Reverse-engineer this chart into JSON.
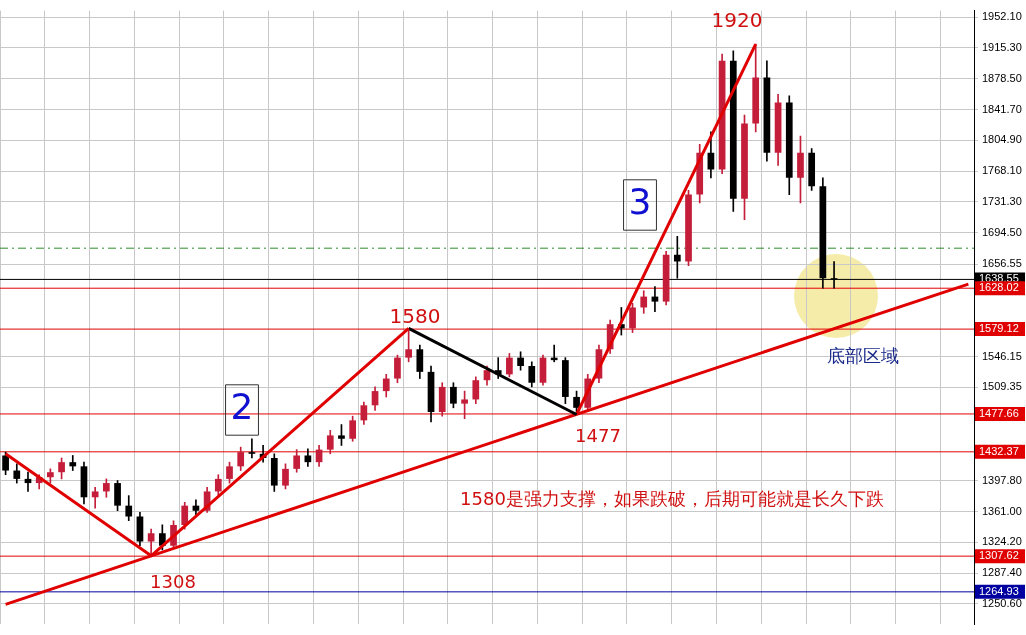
{
  "chart_data": {
    "type": "candlestick",
    "categories": [
      null,
      null,
      null,
      null,
      null,
      null,
      null,
      null,
      null,
      null,
      null,
      null,
      null,
      null,
      null,
      null,
      null,
      null,
      null,
      null,
      null,
      null,
      null,
      null,
      null,
      null,
      null,
      null,
      null,
      null,
      null,
      null,
      null,
      null,
      null,
      null,
      null,
      null,
      null,
      null,
      null,
      null,
      null,
      null,
      null,
      null,
      null,
      null,
      null,
      null,
      null,
      null,
      null,
      null,
      null,
      null,
      null,
      null,
      null,
      null,
      null,
      null,
      null,
      null,
      null,
      null,
      null,
      null,
      null,
      null,
      null,
      null,
      null,
      null,
      null,
      null,
      null,
      null,
      null,
      null,
      null,
      null,
      null,
      null,
      null,
      null,
      null
    ],
    "ohlc": [
      [
        1428,
        1432,
        1405,
        1410
      ],
      [
        1410,
        1418,
        1395,
        1400
      ],
      [
        1400,
        1408,
        1385,
        1395
      ],
      [
        1395,
        1405,
        1388,
        1402
      ],
      [
        1402,
        1412,
        1395,
        1408
      ],
      [
        1408,
        1425,
        1400,
        1420
      ],
      [
        1420,
        1428,
        1410,
        1415
      ],
      [
        1415,
        1420,
        1370,
        1378
      ],
      [
        1378,
        1390,
        1365,
        1385
      ],
      [
        1385,
        1400,
        1378,
        1395
      ],
      [
        1395,
        1398,
        1362,
        1368
      ],
      [
        1368,
        1380,
        1350,
        1355
      ],
      [
        1355,
        1360,
        1320,
        1325
      ],
      [
        1325,
        1340,
        1308,
        1335
      ],
      [
        1335,
        1345,
        1315,
        1320
      ],
      [
        1320,
        1350,
        1318,
        1345
      ],
      [
        1345,
        1372,
        1340,
        1368
      ],
      [
        1368,
        1375,
        1355,
        1362
      ],
      [
        1362,
        1390,
        1360,
        1385
      ],
      [
        1385,
        1405,
        1380,
        1400
      ],
      [
        1400,
        1420,
        1395,
        1415
      ],
      [
        1415,
        1438,
        1410,
        1432
      ],
      [
        1432,
        1448,
        1425,
        1430
      ],
      [
        1430,
        1440,
        1420,
        1425
      ],
      [
        1425,
        1430,
        1385,
        1392
      ],
      [
        1392,
        1418,
        1388,
        1412
      ],
      [
        1412,
        1435,
        1408,
        1428
      ],
      [
        1428,
        1436,
        1415,
        1420
      ],
      [
        1420,
        1440,
        1415,
        1435
      ],
      [
        1435,
        1458,
        1430,
        1452
      ],
      [
        1452,
        1465,
        1440,
        1448
      ],
      [
        1448,
        1475,
        1445,
        1470
      ],
      [
        1470,
        1492,
        1465,
        1488
      ],
      [
        1488,
        1510,
        1482,
        1505
      ],
      [
        1505,
        1525,
        1498,
        1520
      ],
      [
        1520,
        1548,
        1515,
        1545
      ],
      [
        1545,
        1580,
        1540,
        1555
      ],
      [
        1555,
        1560,
        1520,
        1528
      ],
      [
        1528,
        1535,
        1468,
        1480
      ],
      [
        1480,
        1515,
        1475,
        1510
      ],
      [
        1510,
        1515,
        1485,
        1490
      ],
      [
        1490,
        1505,
        1472,
        1495
      ],
      [
        1495,
        1522,
        1490,
        1518
      ],
      [
        1518,
        1535,
        1512,
        1530
      ],
      [
        1530,
        1545,
        1520,
        1525
      ],
      [
        1525,
        1550,
        1522,
        1545
      ],
      [
        1545,
        1552,
        1530,
        1535
      ],
      [
        1535,
        1540,
        1510,
        1515
      ],
      [
        1515,
        1548,
        1512,
        1545
      ],
      [
        1545,
        1560,
        1540,
        1542
      ],
      [
        1542,
        1545,
        1490,
        1498
      ],
      [
        1498,
        1505,
        1477,
        1485
      ],
      [
        1485,
        1525,
        1482,
        1520
      ],
      [
        1520,
        1560,
        1515,
        1555
      ],
      [
        1555,
        1590,
        1550,
        1585
      ],
      [
        1585,
        1605,
        1572,
        1580
      ],
      [
        1580,
        1610,
        1575,
        1605
      ],
      [
        1605,
        1625,
        1598,
        1618
      ],
      [
        1618,
        1630,
        1600,
        1612
      ],
      [
        1612,
        1672,
        1608,
        1668
      ],
      [
        1668,
        1690,
        1640,
        1660
      ],
      [
        1660,
        1745,
        1655,
        1740
      ],
      [
        1740,
        1800,
        1730,
        1790
      ],
      [
        1790,
        1815,
        1760,
        1770
      ],
      [
        1770,
        1908,
        1765,
        1900
      ],
      [
        1900,
        1912,
        1720,
        1735
      ],
      [
        1735,
        1835,
        1710,
        1825
      ],
      [
        1825,
        1920,
        1815,
        1880
      ],
      [
        1880,
        1900,
        1780,
        1790
      ],
      [
        1790,
        1860,
        1775,
        1850
      ],
      [
        1850,
        1858,
        1740,
        1760
      ],
      [
        1760,
        1810,
        1730,
        1790
      ],
      [
        1790,
        1795,
        1745,
        1750
      ],
      [
        1750,
        1760,
        1628,
        1640
      ],
      [
        1640,
        1660,
        1628,
        1638.55
      ],
      null,
      null,
      null,
      null,
      null,
      null,
      null,
      null,
      null,
      null,
      null,
      null
    ],
    "series": [
      {
        "type": "line",
        "color": "#e00000",
        "values": [
          1430,
          null,
          null,
          null,
          null,
          null,
          null,
          null,
          null,
          null,
          null,
          null,
          null,
          1308,
          null,
          null,
          null,
          null,
          null,
          null,
          null,
          null,
          null,
          null,
          null,
          null,
          null,
          null,
          null,
          null,
          null,
          null,
          null,
          null,
          null,
          null,
          1580,
          null,
          null,
          null,
          null,
          null,
          null,
          null,
          null,
          null,
          null,
          null,
          null,
          null,
          null,
          null,
          null,
          null,
          null,
          null,
          null,
          null,
          null,
          null,
          null,
          null,
          null,
          null,
          null,
          null,
          null,
          null,
          null,
          null,
          null,
          null,
          null,
          null,
          null,
          null,
          null,
          null,
          null,
          null,
          null,
          null,
          null,
          null,
          null,
          null,
          null
        ]
      },
      {
        "type": "line",
        "color": "#000000",
        "values": [
          null,
          null,
          null,
          null,
          null,
          null,
          null,
          null,
          null,
          null,
          null,
          null,
          null,
          null,
          null,
          null,
          null,
          null,
          null,
          null,
          null,
          null,
          null,
          null,
          null,
          null,
          null,
          null,
          null,
          null,
          null,
          null,
          null,
          null,
          null,
          null,
          1580,
          null,
          null,
          null,
          null,
          null,
          null,
          null,
          null,
          null,
          null,
          null,
          null,
          null,
          null,
          1477,
          null,
          null,
          null,
          null,
          null,
          null,
          null,
          null,
          null,
          null,
          null,
          null,
          null,
          null,
          null,
          null,
          null,
          null,
          null,
          null,
          null,
          null,
          null,
          null,
          null,
          null,
          null,
          null,
          null,
          null,
          null,
          null,
          null,
          null,
          null
        ]
      },
      {
        "type": "line",
        "color": "#e00000",
        "values": [
          null,
          null,
          null,
          null,
          null,
          null,
          null,
          null,
          null,
          null,
          null,
          null,
          null,
          null,
          null,
          null,
          null,
          null,
          null,
          null,
          null,
          null,
          null,
          null,
          null,
          null,
          null,
          null,
          null,
          null,
          null,
          null,
          null,
          null,
          null,
          null,
          null,
          null,
          null,
          null,
          null,
          null,
          null,
          null,
          null,
          null,
          null,
          null,
          null,
          null,
          null,
          1477,
          null,
          null,
          null,
          null,
          null,
          null,
          null,
          null,
          null,
          null,
          null,
          null,
          null,
          null,
          null,
          1920,
          null,
          null,
          null,
          null,
          null,
          null,
          null,
          null,
          null,
          null,
          null,
          null,
          null,
          null,
          null,
          null,
          null,
          null,
          null
        ]
      },
      {
        "type": "line",
        "color": "#e00000",
        "values": [
          1250,
          null,
          null,
          null,
          null,
          null,
          null,
          null,
          null,
          null,
          null,
          null,
          null,
          1308,
          null,
          null,
          null,
          null,
          null,
          null,
          null,
          null,
          null,
          null,
          null,
          null,
          null,
          null,
          null,
          null,
          null,
          null,
          null,
          null,
          null,
          null,
          null,
          null,
          null,
          null,
          null,
          null,
          null,
          null,
          null,
          null,
          null,
          null,
          null,
          null,
          null,
          null,
          null,
          null,
          null,
          null,
          null,
          null,
          null,
          null,
          null,
          null,
          null,
          null,
          null,
          null,
          null,
          null,
          null,
          null,
          null,
          null,
          null,
          null,
          null,
          null,
          null,
          null,
          null,
          null,
          null,
          null,
          null,
          null,
          null,
          null,
          1633
        ]
      }
    ],
    "ylim": [
      1226,
      1960
    ],
    "yticks": [
      {
        "value": 1952.1,
        "label": "1952.10"
      },
      {
        "value": 1915.3,
        "label": "1915.30"
      },
      {
        "value": 1878.5,
        "label": "1878.50"
      },
      {
        "value": 1841.7,
        "label": "1841.70"
      },
      {
        "value": 1804.9,
        "label": "1804.90"
      },
      {
        "value": 1768.1,
        "label": "1768.10"
      },
      {
        "value": 1731.3,
        "label": "1731.30"
      },
      {
        "value": 1694.5,
        "label": "1694.50"
      },
      1656.55,
      1546.15,
      1509.35,
      {
        "value": 1397.8,
        "label": "1397.80"
      },
      {
        "value": 1361,
        "label": "1361.00"
      },
      {
        "value": 1324.2,
        "label": "1324.20"
      },
      {
        "value": 1287.4,
        "label": "1287.40"
      },
      {
        "value": 1250.6,
        "label": "1250.60"
      }
    ],
    "ref_lines": [
      {
        "axis": "y",
        "value": 1675.9,
        "color": "#2e8b2e",
        "line_style": "dashed"
      },
      {
        "axis": "y",
        "value": 1638.55,
        "label": "1638.55",
        "color": "#000000"
      },
      {
        "axis": "y",
        "value": 1628.02,
        "label": "1628.02",
        "color": "#e00000"
      },
      {
        "axis": "y",
        "value": 1579.12,
        "label": "1579.12",
        "color": "#e00000"
      },
      {
        "axis": "y",
        "value": 1477.66,
        "label": "1477.66",
        "color": "#e00000"
      },
      {
        "axis": "y",
        "value": 1432.37,
        "label": "1432.37",
        "color": "#e00000"
      },
      {
        "axis": "y",
        "value": 1307.62,
        "label": "1307.62",
        "color": "#e00000"
      },
      {
        "axis": "y",
        "value": 1264.93,
        "label": "1264.93",
        "color": "#0000a0"
      }
    ],
    "annotations": [
      "1920",
      "1580",
      "1477",
      "1308",
      "2",
      "3",
      "1580是强力支撑，如果跌破，后期可能就是长久下跌",
      "底部区域"
    ],
    "grid": true,
    "tick_labels": "y",
    "legend": false
  }
}
